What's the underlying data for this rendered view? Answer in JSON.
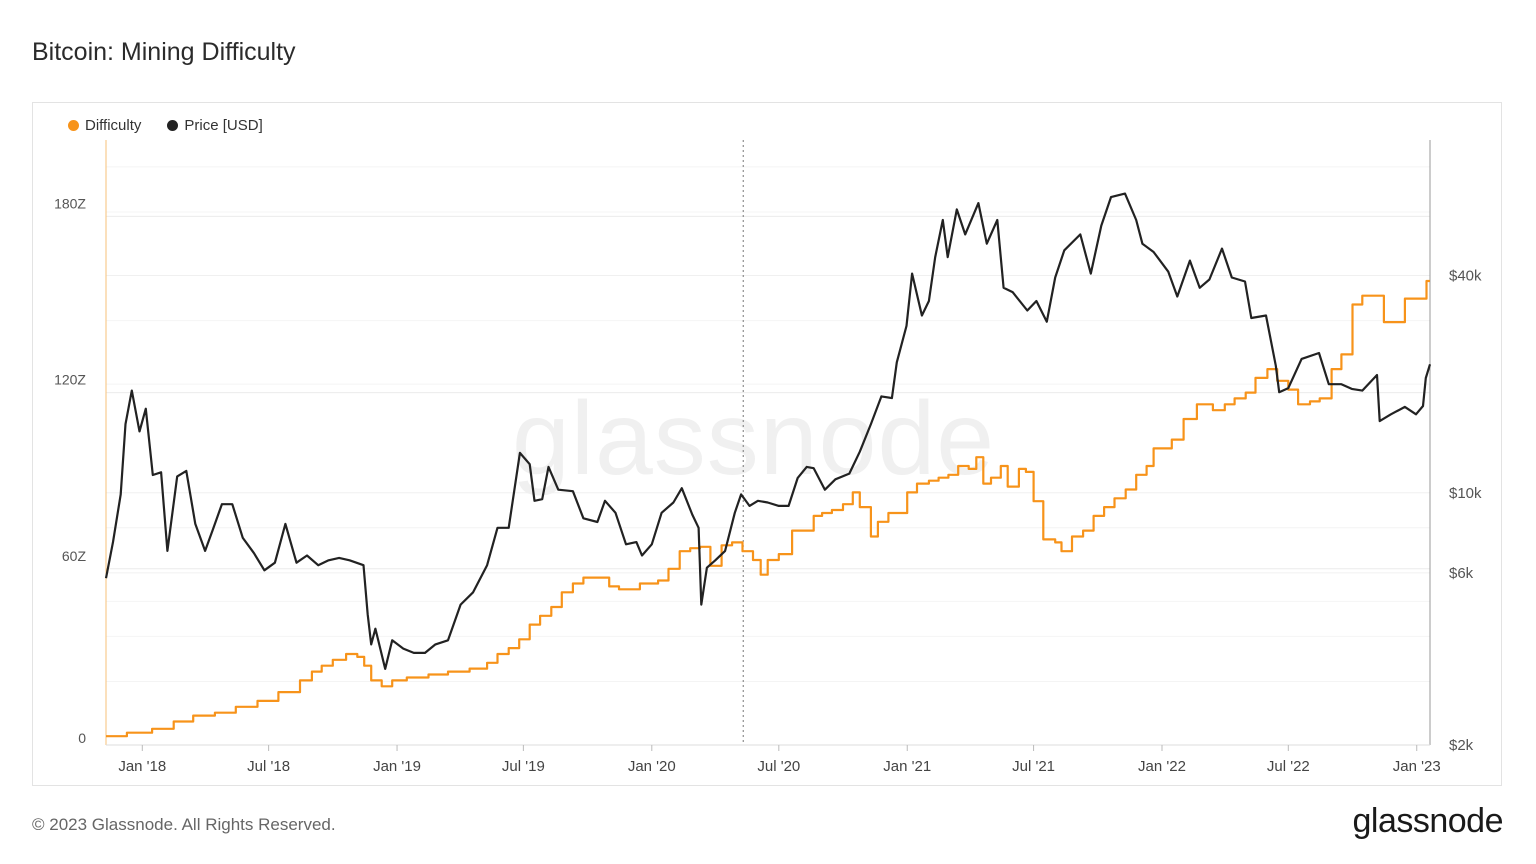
{
  "title": "Bitcoin: Mining Difficulty",
  "legend": [
    {
      "label": "Difficulty",
      "color": "#f7931a"
    },
    {
      "label": "Price [USD]",
      "color": "#222222"
    }
  ],
  "footer": {
    "copyright": "© 2023 Glassnode. All Rights Reserved.",
    "logo": "glassnode"
  },
  "watermark": "glassnode",
  "chart_data": {
    "type": "line",
    "x_ticks": [
      "Jan '18",
      "Jul '18",
      "Jan '19",
      "Jul '19",
      "Jan '20",
      "Jul '20",
      "Jan '21",
      "Jul '21",
      "Jan '22",
      "Jul '22",
      "Jan '23"
    ],
    "x_tick_dates": [
      "2018-01-01",
      "2018-07-01",
      "2019-01-01",
      "2019-07-01",
      "2020-01-01",
      "2020-07-01",
      "2021-01-01",
      "2021-07-01",
      "2022-01-01",
      "2022-07-01",
      "2023-01-01"
    ],
    "x_range": [
      "2017-11-10",
      "2023-01-20"
    ],
    "left_axis": {
      "ticks": [
        "0",
        "60Z",
        "120Z",
        "180Z"
      ],
      "values": [
        0,
        60,
        120,
        180
      ],
      "range": [
        0,
        206
      ],
      "unit": "Z"
    },
    "right_axis": {
      "ticks": [
        "$2k",
        "$6k",
        "$10k",
        "$40k"
      ],
      "values": [
        2000,
        6000,
        10000,
        40000
      ],
      "scale": "log",
      "range": [
        2000,
        95000
      ]
    },
    "highlight_date": "2020-05-11",
    "grid": true,
    "legend_position": "top-left",
    "series": [
      {
        "name": "Difficulty",
        "axis": "left",
        "color": "#f7931a",
        "step": true,
        "points": [
          [
            "2017-11-10",
            3
          ],
          [
            "2017-12-10",
            4.2
          ],
          [
            "2018-01-15",
            5.5
          ],
          [
            "2018-02-15",
            8
          ],
          [
            "2018-03-15",
            10
          ],
          [
            "2018-04-15",
            11
          ],
          [
            "2018-05-15",
            13
          ],
          [
            "2018-06-15",
            15
          ],
          [
            "2018-07-15",
            18
          ],
          [
            "2018-08-15",
            22
          ],
          [
            "2018-09-01",
            25
          ],
          [
            "2018-09-15",
            27
          ],
          [
            "2018-10-01",
            29
          ],
          [
            "2018-10-20",
            31
          ],
          [
            "2018-11-05",
            30
          ],
          [
            "2018-11-15",
            27
          ],
          [
            "2018-11-25",
            22
          ],
          [
            "2018-12-10",
            20
          ],
          [
            "2018-12-25",
            22
          ],
          [
            "2019-01-15",
            23
          ],
          [
            "2019-02-15",
            24
          ],
          [
            "2019-03-15",
            25
          ],
          [
            "2019-04-15",
            26
          ],
          [
            "2019-05-10",
            28
          ],
          [
            "2019-05-25",
            31
          ],
          [
            "2019-06-10",
            33
          ],
          [
            "2019-06-25",
            36
          ],
          [
            "2019-07-10",
            41
          ],
          [
            "2019-07-25",
            44
          ],
          [
            "2019-08-10",
            47
          ],
          [
            "2019-08-25",
            52
          ],
          [
            "2019-09-10",
            55
          ],
          [
            "2019-09-25",
            57
          ],
          [
            "2019-10-15",
            57
          ],
          [
            "2019-11-01",
            54
          ],
          [
            "2019-11-15",
            53
          ],
          [
            "2019-12-01",
            53
          ],
          [
            "2019-12-15",
            55
          ],
          [
            "2020-01-10",
            56
          ],
          [
            "2020-01-25",
            60
          ],
          [
            "2020-02-10",
            66
          ],
          [
            "2020-02-25",
            67
          ],
          [
            "2020-03-10",
            67.5
          ],
          [
            "2020-03-25",
            61
          ],
          [
            "2020-04-10",
            68
          ],
          [
            "2020-04-25",
            69
          ],
          [
            "2020-05-10",
            66
          ],
          [
            "2020-05-25",
            63
          ],
          [
            "2020-06-05",
            58
          ],
          [
            "2020-06-15",
            63
          ],
          [
            "2020-07-01",
            65
          ],
          [
            "2020-07-20",
            73
          ],
          [
            "2020-08-05",
            73
          ],
          [
            "2020-08-20",
            78
          ],
          [
            "2020-09-01",
            79
          ],
          [
            "2020-09-15",
            80
          ],
          [
            "2020-10-01",
            82
          ],
          [
            "2020-10-15",
            86
          ],
          [
            "2020-10-25",
            81
          ],
          [
            "2020-11-10",
            71
          ],
          [
            "2020-11-20",
            76
          ],
          [
            "2020-12-05",
            79
          ],
          [
            "2020-12-20",
            79
          ],
          [
            "2021-01-01",
            86
          ],
          [
            "2021-01-15",
            89
          ],
          [
            "2021-02-01",
            90
          ],
          [
            "2021-02-15",
            91
          ],
          [
            "2021-03-01",
            92
          ],
          [
            "2021-03-15",
            95
          ],
          [
            "2021-03-30",
            94
          ],
          [
            "2021-04-10",
            98
          ],
          [
            "2021-04-20",
            89
          ],
          [
            "2021-05-01",
            91
          ],
          [
            "2021-05-15",
            95
          ],
          [
            "2021-05-25",
            88
          ],
          [
            "2021-06-10",
            94
          ],
          [
            "2021-06-20",
            93
          ],
          [
            "2021-07-01",
            83
          ],
          [
            "2021-07-15",
            70
          ],
          [
            "2021-08-01",
            69
          ],
          [
            "2021-08-10",
            66
          ],
          [
            "2021-08-25",
            71
          ],
          [
            "2021-09-10",
            73
          ],
          [
            "2021-09-25",
            78
          ],
          [
            "2021-10-10",
            81
          ],
          [
            "2021-10-25",
            84
          ],
          [
            "2021-11-10",
            87
          ],
          [
            "2021-11-25",
            92
          ],
          [
            "2021-12-10",
            95
          ],
          [
            "2021-12-20",
            101
          ],
          [
            "2022-01-15",
            104
          ],
          [
            "2022-02-01",
            111
          ],
          [
            "2022-02-20",
            116
          ],
          [
            "2022-03-15",
            114
          ],
          [
            "2022-04-01",
            116
          ],
          [
            "2022-04-15",
            118
          ],
          [
            "2022-05-01",
            120
          ],
          [
            "2022-05-15",
            125
          ],
          [
            "2022-06-01",
            128
          ],
          [
            "2022-06-15",
            124
          ],
          [
            "2022-07-01",
            121
          ],
          [
            "2022-07-15",
            116
          ],
          [
            "2022-08-01",
            117
          ],
          [
            "2022-08-15",
            118
          ],
          [
            "2022-09-01",
            128
          ],
          [
            "2022-09-15",
            133
          ],
          [
            "2022-10-01",
            150
          ],
          [
            "2022-10-15",
            153
          ],
          [
            "2022-11-01",
            153
          ],
          [
            "2022-11-15",
            144
          ],
          [
            "2022-12-01",
            144
          ],
          [
            "2022-12-15",
            152
          ],
          [
            "2023-01-01",
            152
          ],
          [
            "2023-01-15",
            158
          ]
        ]
      },
      {
        "name": "Price [USD]",
        "axis": "right",
        "color": "#222222",
        "step": false,
        "points": [
          [
            "2017-11-10",
            5800
          ],
          [
            "2017-11-20",
            7300
          ],
          [
            "2017-12-01",
            9900
          ],
          [
            "2017-12-08",
            15500
          ],
          [
            "2017-12-17",
            19200
          ],
          [
            "2017-12-28",
            14800
          ],
          [
            "2018-01-06",
            17100
          ],
          [
            "2018-01-16",
            11200
          ],
          [
            "2018-01-28",
            11400
          ],
          [
            "2018-02-06",
            6900
          ],
          [
            "2018-02-20",
            11100
          ],
          [
            "2018-03-05",
            11500
          ],
          [
            "2018-03-18",
            8200
          ],
          [
            "2018-04-01",
            6900
          ],
          [
            "2018-04-12",
            7900
          ],
          [
            "2018-04-25",
            9300
          ],
          [
            "2018-05-10",
            9300
          ],
          [
            "2018-05-25",
            7500
          ],
          [
            "2018-06-10",
            6800
          ],
          [
            "2018-06-25",
            6100
          ],
          [
            "2018-07-10",
            6400
          ],
          [
            "2018-07-25",
            8200
          ],
          [
            "2018-08-10",
            6400
          ],
          [
            "2018-08-25",
            6700
          ],
          [
            "2018-09-10",
            6300
          ],
          [
            "2018-09-25",
            6500
          ],
          [
            "2018-10-10",
            6600
          ],
          [
            "2018-10-25",
            6500
          ],
          [
            "2018-11-14",
            6300
          ],
          [
            "2018-11-20",
            4600
          ],
          [
            "2018-11-25",
            3800
          ],
          [
            "2018-12-01",
            4200
          ],
          [
            "2018-12-15",
            3250
          ],
          [
            "2018-12-25",
            3900
          ],
          [
            "2019-01-10",
            3700
          ],
          [
            "2019-01-25",
            3600
          ],
          [
            "2019-02-10",
            3600
          ],
          [
            "2019-02-25",
            3800
          ],
          [
            "2019-03-15",
            3900
          ],
          [
            "2019-04-02",
            4900
          ],
          [
            "2019-04-20",
            5300
          ],
          [
            "2019-05-10",
            6300
          ],
          [
            "2019-05-25",
            8000
          ],
          [
            "2019-06-10",
            8000
          ],
          [
            "2019-06-26",
            12900
          ],
          [
            "2019-07-10",
            12000
          ],
          [
            "2019-07-17",
            9500
          ],
          [
            "2019-07-28",
            9600
          ],
          [
            "2019-08-06",
            11800
          ],
          [
            "2019-08-20",
            10200
          ],
          [
            "2019-09-10",
            10100
          ],
          [
            "2019-09-25",
            8500
          ],
          [
            "2019-10-15",
            8300
          ],
          [
            "2019-10-26",
            9500
          ],
          [
            "2019-11-10",
            8800
          ],
          [
            "2019-11-25",
            7200
          ],
          [
            "2019-12-10",
            7300
          ],
          [
            "2019-12-18",
            6700
          ],
          [
            "2020-01-01",
            7200
          ],
          [
            "2020-01-15",
            8800
          ],
          [
            "2020-02-01",
            9400
          ],
          [
            "2020-02-13",
            10300
          ],
          [
            "2020-02-28",
            8700
          ],
          [
            "2020-03-08",
            8000
          ],
          [
            "2020-03-12",
            4900
          ],
          [
            "2020-03-20",
            6200
          ],
          [
            "2020-04-01",
            6500
          ],
          [
            "2020-04-15",
            6900
          ],
          [
            "2020-04-29",
            8800
          ],
          [
            "2020-05-08",
            9900
          ],
          [
            "2020-05-20",
            9200
          ],
          [
            "2020-06-01",
            9500
          ],
          [
            "2020-06-15",
            9400
          ],
          [
            "2020-07-01",
            9200
          ],
          [
            "2020-07-15",
            9200
          ],
          [
            "2020-07-28",
            11000
          ],
          [
            "2020-08-10",
            11800
          ],
          [
            "2020-08-20",
            11700
          ],
          [
            "2020-09-05",
            10200
          ],
          [
            "2020-09-20",
            10900
          ],
          [
            "2020-10-10",
            11300
          ],
          [
            "2020-10-25",
            13000
          ],
          [
            "2020-11-10",
            15500
          ],
          [
            "2020-11-25",
            18500
          ],
          [
            "2020-12-10",
            18300
          ],
          [
            "2020-12-17",
            23000
          ],
          [
            "2020-12-31",
            29000
          ],
          [
            "2021-01-08",
            40500
          ],
          [
            "2021-01-22",
            31000
          ],
          [
            "2021-02-01",
            34000
          ],
          [
            "2021-02-10",
            45000
          ],
          [
            "2021-02-21",
            57000
          ],
          [
            "2021-02-28",
            45000
          ],
          [
            "2021-03-13",
            61000
          ],
          [
            "2021-03-25",
            52000
          ],
          [
            "2021-04-13",
            63500
          ],
          [
            "2021-04-25",
            49000
          ],
          [
            "2021-05-10",
            57000
          ],
          [
            "2021-05-19",
            37000
          ],
          [
            "2021-06-01",
            36000
          ],
          [
            "2021-06-22",
            32000
          ],
          [
            "2021-07-05",
            34000
          ],
          [
            "2021-07-20",
            29800
          ],
          [
            "2021-08-01",
            39500
          ],
          [
            "2021-08-14",
            47000
          ],
          [
            "2021-09-06",
            52000
          ],
          [
            "2021-09-21",
            40500
          ],
          [
            "2021-10-06",
            55000
          ],
          [
            "2021-10-20",
            66000
          ],
          [
            "2021-11-09",
            67500
          ],
          [
            "2021-11-25",
            57000
          ],
          [
            "2021-12-04",
            49000
          ],
          [
            "2021-12-20",
            46500
          ],
          [
            "2022-01-10",
            41000
          ],
          [
            "2022-01-23",
            35000
          ],
          [
            "2022-02-10",
            44000
          ],
          [
            "2022-02-24",
            37000
          ],
          [
            "2022-03-10",
            39000
          ],
          [
            "2022-03-28",
            47500
          ],
          [
            "2022-04-11",
            39500
          ],
          [
            "2022-04-30",
            38500
          ],
          [
            "2022-05-09",
            30500
          ],
          [
            "2022-05-30",
            31000
          ],
          [
            "2022-06-13",
            22500
          ],
          [
            "2022-06-18",
            19000
          ],
          [
            "2022-07-01",
            19500
          ],
          [
            "2022-07-20",
            23500
          ],
          [
            "2022-08-14",
            24400
          ],
          [
            "2022-08-28",
            20000
          ],
          [
            "2022-09-15",
            20000
          ],
          [
            "2022-09-30",
            19400
          ],
          [
            "2022-10-15",
            19200
          ],
          [
            "2022-11-05",
            21200
          ],
          [
            "2022-11-09",
            15800
          ],
          [
            "2022-11-25",
            16500
          ],
          [
            "2022-12-15",
            17300
          ],
          [
            "2022-12-31",
            16500
          ],
          [
            "2023-01-10",
            17400
          ],
          [
            "2023-01-14",
            20800
          ],
          [
            "2023-01-20",
            22700
          ]
        ]
      }
    ]
  }
}
